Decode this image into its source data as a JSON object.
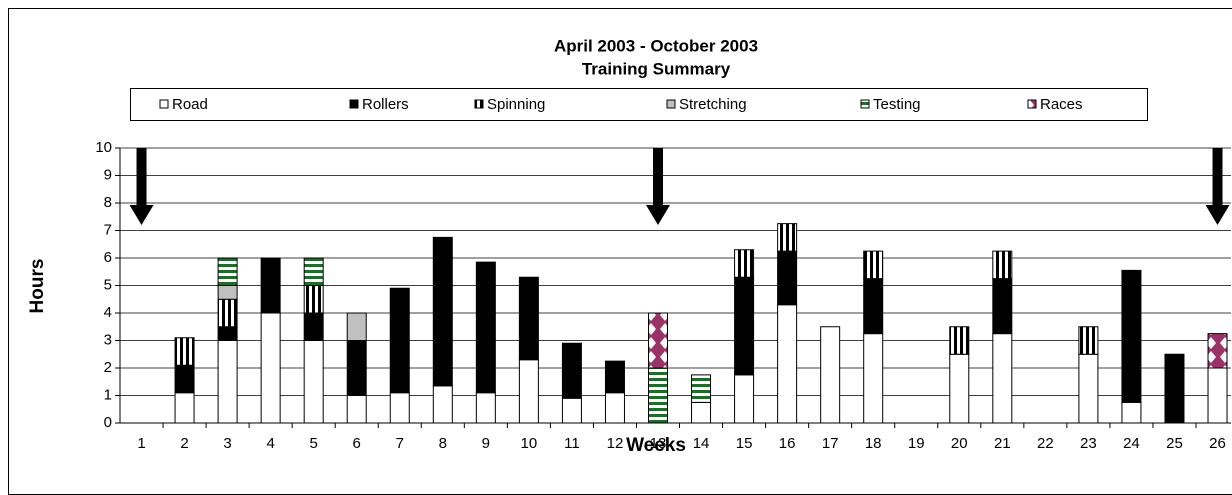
{
  "chart_data": {
    "type": "stacked-bar",
    "title": "April 2003 - October 2003",
    "subtitle": "Training Summary",
    "x_label": "Weeks",
    "y_label": "Hours",
    "categories": [
      "1",
      "2",
      "3",
      "4",
      "5",
      "6",
      "7",
      "8",
      "9",
      "10",
      "11",
      "12",
      "13",
      "14",
      "15",
      "16",
      "17",
      "18",
      "19",
      "20",
      "21",
      "22",
      "23",
      "24",
      "25",
      "26"
    ],
    "series": [
      {
        "name": "Road",
        "color": "#ffffff",
        "pattern": "solid",
        "values": [
          0,
          1.1,
          3,
          4,
          3,
          1,
          1.1,
          1.35,
          1.1,
          2.3,
          0.9,
          1.1,
          0,
          0.75,
          1.75,
          4.3,
          3.5,
          3.25,
          0,
          2.5,
          3.25,
          0,
          2.5,
          0.75,
          0,
          2
        ]
      },
      {
        "name": "Rollers",
        "color": "#000000",
        "pattern": "solid",
        "values": [
          0,
          1,
          0.5,
          2,
          1,
          2,
          3.8,
          5.4,
          4.75,
          3,
          2,
          1.15,
          0,
          0,
          3.55,
          1.95,
          0,
          2,
          0,
          0,
          2,
          0,
          0,
          4.8,
          2.5,
          0
        ]
      },
      {
        "name": "Spinning",
        "color": "#000000",
        "pattern": "vertical-stripes",
        "values": [
          0,
          1,
          1,
          0,
          1,
          0,
          0,
          0,
          0,
          0,
          0,
          0,
          0,
          0,
          1,
          1,
          0,
          1,
          0,
          1,
          1,
          0,
          1,
          0,
          0,
          0
        ]
      },
      {
        "name": "Stretching",
        "color": "#c0c0c0",
        "pattern": "solid",
        "values": [
          0,
          0,
          0.5,
          0,
          0,
          1,
          0,
          0,
          0,
          0,
          0,
          0,
          0,
          0,
          0,
          0,
          0,
          0,
          0,
          0,
          0,
          0,
          0,
          0,
          0,
          0
        ]
      },
      {
        "name": "Testing",
        "color": "#1e6b2a",
        "pattern": "horizontal-stripes",
        "values": [
          0,
          0,
          1,
          0,
          1,
          0,
          0,
          0,
          0,
          0,
          0,
          0,
          2,
          1,
          0,
          0,
          0,
          0,
          0,
          0,
          0,
          0,
          0,
          0,
          0,
          0
        ]
      },
      {
        "name": "Races",
        "color": "#993366",
        "pattern": "diamonds",
        "values": [
          0,
          0,
          0,
          0,
          0,
          0,
          0,
          0,
          0,
          0,
          0,
          0,
          2,
          0,
          0,
          0,
          0,
          0,
          0,
          0,
          0,
          0,
          0,
          0,
          0,
          1.25
        ]
      }
    ],
    "ylim": [
      0,
      10
    ],
    "yticks": [
      0,
      1,
      2,
      3,
      4,
      5,
      6,
      7,
      8,
      9,
      10
    ],
    "grid": true
  }
}
